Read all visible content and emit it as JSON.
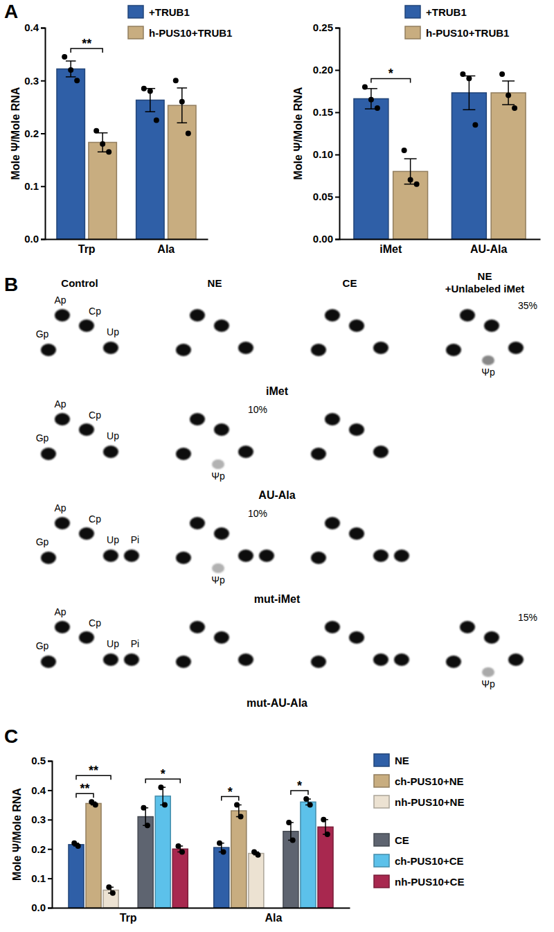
{
  "panel_labels": [
    "A",
    "B",
    "C"
  ],
  "chart_data": [
    {
      "type": "bar",
      "categories": [
        "Trp",
        "Ala"
      ],
      "y_label": "Mole Ψ/Mole RNA",
      "ylim": [
        0,
        0.4
      ],
      "yticks": [
        {
          "value": 0,
          "label": "0.0"
        },
        0.1,
        0.2,
        0.3,
        0.4
      ],
      "legend": "top-right",
      "series": [
        {
          "name": "+TRUB1",
          "color": "#2f5fa7",
          "values": [
            0.322,
            0.263
          ],
          "errors": [
            0.015,
            0.022
          ],
          "points": [
            [
              0.345,
              0.32,
              0.3
            ],
            [
              0.285,
              0.28,
              0.225
            ]
          ]
        },
        {
          "name": "h-PUS10+TRUB1",
          "color": "#c8ad80",
          "values": [
            0.183,
            0.253
          ],
          "errors": [
            0.018,
            0.033
          ],
          "points": [
            [
              0.205,
              0.18,
              0.165
            ],
            [
              0.3,
              0.26,
              0.2
            ]
          ]
        }
      ],
      "annotations": [
        {
          "text": "**",
          "category": "Trp",
          "between": [
            "+TRUB1",
            "h-PUS10+TRUB1"
          ]
        }
      ]
    },
    {
      "type": "bar",
      "categories": [
        "iMet",
        "AU-Ala"
      ],
      "y_label": "Mole Ψ/Mole RNA",
      "ylim": [
        0,
        0.25
      ],
      "yticks": [
        {
          "value": 0,
          "label": "0.00"
        },
        0.05,
        {
          "value": 0.1,
          "label": "0.10"
        },
        0.15,
        {
          "value": 0.2,
          "label": "0.20"
        },
        0.25
      ],
      "legend": "top-right",
      "series": [
        {
          "name": "+TRUB1",
          "color": "#2f5fa7",
          "values": [
            0.166,
            0.173
          ],
          "errors": [
            0.012,
            0.02
          ],
          "points": [
            [
              0.18,
              0.165,
              0.155
            ],
            [
              0.195,
              0.19,
              0.135
            ]
          ]
        },
        {
          "name": "h-PUS10+TRUB1",
          "color": "#c8ad80",
          "values": [
            0.08,
            0.173
          ],
          "errors": [
            0.015,
            0.014
          ],
          "points": [
            [
              0.105,
              0.07,
              0.065
            ],
            [
              0.195,
              0.17,
              0.155
            ]
          ]
        }
      ],
      "annotations": [
        {
          "text": "*",
          "category": "iMet",
          "between": [
            "+TRUB1",
            "h-PUS10+TRUB1"
          ]
        }
      ]
    },
    {
      "type": "bar",
      "categories": [
        "Trp",
        "Ala"
      ],
      "y_label": "Mole Ψ/Mole RNA",
      "ylim": [
        0,
        0.5
      ],
      "yticks": [
        {
          "value": 0,
          "label": "0.0"
        },
        0.1,
        0.2,
        0.3,
        0.4,
        0.5
      ],
      "legend": "right",
      "series": [
        {
          "name": "NE",
          "color": "#2f5fa7",
          "values": [
            0.215,
            0.205
          ],
          "errors": [
            0.005,
            0.015
          ],
          "points": [
            [
              0.22,
              0.21
            ],
            [
              0.22,
              0.19
            ]
          ]
        },
        {
          "name": "ch-PUS10+NE",
          "color": "#c8ad80",
          "values": [
            0.355,
            0.33
          ],
          "errors": [
            0.005,
            0.02
          ],
          "points": [
            [
              0.36,
              0.35
            ],
            [
              0.35,
              0.31
            ]
          ]
        },
        {
          "name": "nh-PUS10+NE",
          "color": "#ece2d2",
          "values": [
            0.06,
            0.185
          ],
          "errors": [
            0.01,
            0.005
          ],
          "points": [
            [
              0.07,
              0.05
            ],
            [
              0.19,
              0.18
            ]
          ]
        },
        {
          "name": "CE",
          "color": "#5e6470",
          "values": [
            0.31,
            0.26
          ],
          "errors": [
            0.03,
            0.03
          ],
          "points": [
            [
              0.34,
              0.28
            ],
            [
              0.29,
              0.23
            ]
          ]
        },
        {
          "name": "ch-PUS10+CE",
          "color": "#5cc1ea",
          "values": [
            0.38,
            0.36
          ],
          "errors": [
            0.03,
            0.01
          ],
          "points": [
            [
              0.41,
              0.35
            ],
            [
              0.37,
              0.35
            ]
          ]
        },
        {
          "name": "nh-PUS10+CE",
          "color": "#a8284f",
          "values": [
            0.2,
            0.275
          ],
          "errors": [
            0.01,
            0.025
          ],
          "points": [
            [
              0.21,
              0.19
            ],
            [
              0.3,
              0.25
            ]
          ]
        }
      ],
      "annotations": [
        {
          "text": "**",
          "category": "Trp",
          "between": [
            "NE",
            "ch-PUS10+NE"
          ]
        },
        {
          "text": "**",
          "category": "Trp",
          "between": [
            "NE",
            "nh-PUS10+NE"
          ]
        },
        {
          "text": "*",
          "category": "Trp",
          "between": [
            "CE",
            "nh-PUS10+CE"
          ]
        },
        {
          "text": "*",
          "category": "Ala",
          "between": [
            "NE",
            "ch-PUS10+NE"
          ]
        },
        {
          "text": "*",
          "category": "Ala",
          "between": [
            "CE",
            "ch-PUS10+CE"
          ]
        }
      ]
    }
  ],
  "tlc": {
    "spot_types": [
      "Ap",
      "Cp",
      "Gp",
      "Up",
      "Pi",
      "Ψp"
    ],
    "columns": [
      [
        "Control"
      ],
      [
        "NE"
      ],
      [
        "CE"
      ],
      [
        "NE",
        "+Unlabeled iMet"
      ]
    ],
    "rows": [
      {
        "label": "iMet",
        "cells": [
          {
            "spots": [
              "Ap",
              "Cp",
              "Gp",
              "Up"
            ],
            "labels": [
              "Ap",
              "Cp",
              "Gp",
              "Up"
            ]
          },
          {
            "spots": [
              "Ap",
              "Cp",
              "Gp",
              "Up"
            ]
          },
          {
            "spots": [
              "Ap",
              "Cp",
              "Gp",
              "Up"
            ]
          },
          {
            "spots": [
              "Ap",
              "Cp",
              "Gp",
              "Up",
              "Ψp"
            ],
            "labels": [
              "Ψp"
            ],
            "percent": {
              "value": 35,
              "label": "35%"
            }
          }
        ]
      },
      {
        "label": "AU-Ala",
        "cells": [
          {
            "spots": [
              "Ap",
              "Cp",
              "Gp",
              "Up"
            ],
            "labels": [
              "Ap",
              "Cp",
              "Gp",
              "Up"
            ]
          },
          {
            "spots": [
              "Ap",
              "Cp",
              "Gp",
              "Up",
              "Ψp"
            ],
            "labels": [
              "Ψp"
            ],
            "percent": {
              "value": 10,
              "label": "10%"
            }
          },
          {
            "spots": [
              "Ap",
              "Cp",
              "Gp",
              "Up"
            ]
          }
        ]
      },
      {
        "label": "mut-iMet",
        "cells": [
          {
            "spots": [
              "Ap",
              "Cp",
              "Gp",
              "Up",
              "Pi"
            ],
            "labels": [
              "Ap",
              "Cp",
              "Gp",
              "Up",
              "Pi"
            ]
          },
          {
            "spots": [
              "Ap",
              "Cp",
              "Gp",
              "Up",
              "Pi",
              "Ψp"
            ],
            "labels": [
              "Ψp"
            ],
            "percent": {
              "value": 10,
              "label": "10%"
            }
          },
          {
            "spots": [
              "Ap",
              "Cp",
              "Gp",
              "Up",
              "Pi"
            ]
          }
        ]
      },
      {
        "label": "mut-AU-Ala",
        "cells": [
          {
            "spots": [
              "Ap",
              "Cp",
              "Gp",
              "Up",
              "Pi"
            ],
            "labels": [
              "Ap",
              "Cp",
              "Gp",
              "Up",
              "Pi"
            ]
          },
          {
            "spots": [
              "Ap",
              "Cp",
              "Gp",
              "Up"
            ]
          },
          {
            "spots": [
              "Ap",
              "Cp",
              "Gp",
              "Up",
              "Pi"
            ]
          },
          {
            "spots": [
              "Ap",
              "Cp",
              "Gp",
              "Up",
              "Ψp"
            ],
            "labels": [
              "Ψp"
            ],
            "percent": {
              "value": 15,
              "label": "15%"
            }
          }
        ]
      }
    ]
  }
}
